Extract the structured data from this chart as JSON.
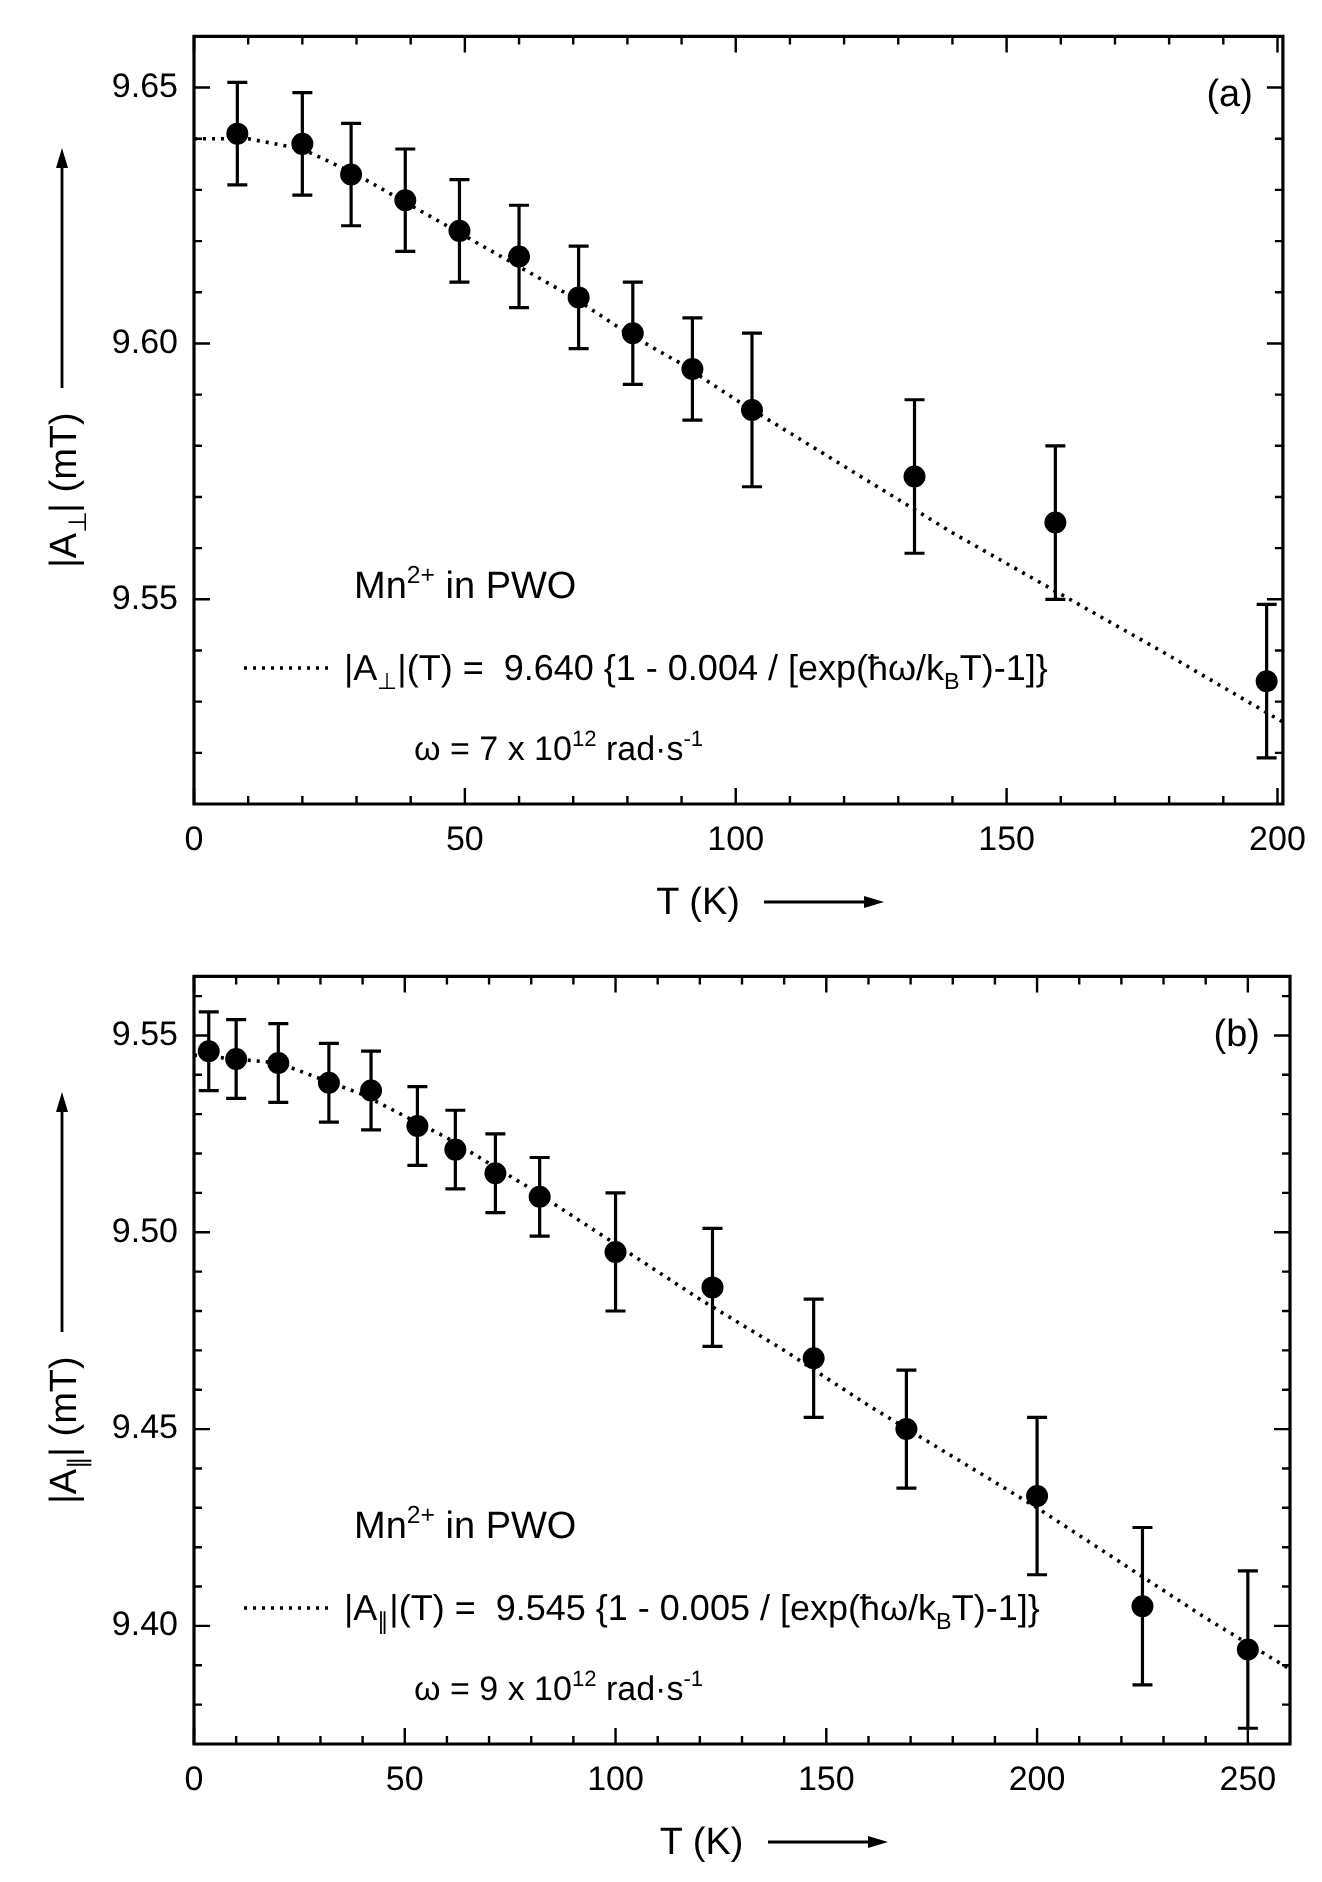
{
  "chart_data": [
    {
      "type": "scatter",
      "xlabel": "T (K)",
      "ylabel": "|A$_{⊥}$| (mT)",
      "xlim": [
        0,
        201
      ],
      "ylim": [
        9.51,
        9.66
      ],
      "xticks": [
        0,
        {
          "value": 10,
          "label": null
        },
        {
          "value": 20,
          "label": null
        },
        {
          "value": 30,
          "label": null
        },
        {
          "value": 40,
          "label": null
        },
        50,
        {
          "value": 60,
          "label": null
        },
        {
          "value": 70,
          "label": null
        },
        {
          "value": 80,
          "label": null
        },
        {
          "value": 90,
          "label": null
        },
        100,
        {
          "value": 110,
          "label": null
        },
        {
          "value": 120,
          "label": null
        },
        {
          "value": 130,
          "label": null
        },
        {
          "value": 140,
          "label": null
        },
        150,
        {
          "value": 160,
          "label": null
        },
        {
          "value": 170,
          "label": null
        },
        {
          "value": 180,
          "label": null
        },
        {
          "value": 190,
          "label": null
        },
        200
      ],
      "yticks": [
        {
          "value": 9.52,
          "label": null
        },
        {
          "value": 9.53,
          "label": null
        },
        {
          "value": 9.54,
          "label": null
        },
        {
          "value": 9.55,
          "label": "9.55"
        },
        {
          "value": 9.56,
          "label": null
        },
        {
          "value": 9.57,
          "label": null
        },
        {
          "value": 9.58,
          "label": null
        },
        {
          "value": 9.59,
          "label": null
        },
        {
          "value": 9.6,
          "label": "9.60"
        },
        {
          "value": 9.61,
          "label": null
        },
        {
          "value": 9.62,
          "label": null
        },
        {
          "value": 9.63,
          "label": null
        },
        {
          "value": 9.64,
          "label": null
        },
        {
          "value": 9.65,
          "label": "9.65"
        }
      ],
      "legend": "bottom left",
      "annotations": [
        "(a)",
        "Mn$^{2+}$ in PWO",
        "ω = 7 x 10$^{12}$ rad·s$^{-1}$"
      ],
      "series": [
        {
          "type": "scatter",
          "color": "#000000",
          "marker": "circle",
          "x": [
            8,
            20,
            29,
            39,
            49,
            60,
            71,
            81,
            92,
            103,
            133,
            159,
            198
          ],
          "values": [
            9.641,
            9.639,
            9.633,
            9.628,
            9.622,
            9.617,
            9.609,
            9.602,
            9.595,
            9.587,
            9.574,
            9.565,
            9.534
          ],
          "errors": [
            0.01,
            0.01,
            0.01,
            0.01,
            0.01,
            0.01,
            0.01,
            0.01,
            0.01,
            0.015,
            0.015,
            0.015,
            0.015
          ]
        },
        {
          "type": "line",
          "name": "|A$_{⊥}$|(T) =  9.640 {1 - 0.004 / [exp(ħω/k$_{B}$T)-1]}",
          "color": "#000000",
          "marker": "none",
          "line_style": "dotted",
          "x": [
            0,
            10,
            20,
            30,
            40,
            50,
            60,
            70,
            80,
            90,
            100,
            120,
            140,
            160,
            180,
            201
          ],
          "values": [
            9.64,
            9.64,
            9.638,
            9.633,
            9.627,
            9.621,
            9.615,
            9.609,
            9.602,
            9.596,
            9.589,
            9.576,
            9.563,
            9.551,
            9.539,
            9.526
          ]
        }
      ]
    },
    {
      "type": "scatter",
      "xlabel": "T (K)",
      "ylabel": "|A$_{∥}$| (mT)",
      "xlim": [
        0,
        260
      ],
      "ylim": [
        9.37,
        9.565
      ],
      "xticks": [
        0,
        {
          "value": 10,
          "label": null
        },
        {
          "value": 20,
          "label": null
        },
        {
          "value": 30,
          "label": null
        },
        {
          "value": 40,
          "label": null
        },
        50,
        {
          "value": 60,
          "label": null
        },
        {
          "value": 70,
          "label": null
        },
        {
          "value": 80,
          "label": null
        },
        {
          "value": 90,
          "label": null
        },
        100,
        {
          "value": 110,
          "label": null
        },
        {
          "value": 120,
          "label": null
        },
        {
          "value": 130,
          "label": null
        },
        {
          "value": 140,
          "label": null
        },
        150,
        {
          "value": 160,
          "label": null
        },
        {
          "value": 170,
          "label": null
        },
        {
          "value": 180,
          "label": null
        },
        {
          "value": 190,
          "label": null
        },
        200,
        {
          "value": 210,
          "label": null
        },
        {
          "value": 220,
          "label": null
        },
        {
          "value": 230,
          "label": null
        },
        {
          "value": 240,
          "label": null
        },
        250
      ],
      "yticks": [
        {
          "value": 9.38,
          "label": null
        },
        {
          "value": 9.39,
          "label": null
        },
        {
          "value": 9.4,
          "label": "9.40"
        },
        {
          "value": 9.41,
          "label": null
        },
        {
          "value": 9.42,
          "label": null
        },
        {
          "value": 9.43,
          "label": null
        },
        {
          "value": 9.44,
          "label": null
        },
        {
          "value": 9.45,
          "label": "9.45"
        },
        {
          "value": 9.46,
          "label": null
        },
        {
          "value": 9.47,
          "label": null
        },
        {
          "value": 9.48,
          "label": null
        },
        {
          "value": 9.49,
          "label": null
        },
        {
          "value": 9.5,
          "label": "9.50"
        },
        {
          "value": 9.51,
          "label": null
        },
        {
          "value": 9.52,
          "label": null
        },
        {
          "value": 9.53,
          "label": null
        },
        {
          "value": 9.54,
          "label": null
        },
        {
          "value": 9.55,
          "label": "9.55"
        },
        {
          "value": 9.56,
          "label": null
        }
      ],
      "legend": "bottom left",
      "annotations": [
        "(b)",
        "Mn$^{2+}$ in PWO",
        "ω = 9 x 10$^{12}$ rad·s$^{-1}$"
      ],
      "series": [
        {
          "type": "scatter",
          "color": "#000000",
          "marker": "circle",
          "x": [
            3.5,
            10,
            20,
            32,
            42,
            53,
            62,
            71.5,
            82,
            100,
            123,
            147,
            169,
            200,
            225,
            250
          ],
          "values": [
            9.546,
            9.544,
            9.543,
            9.538,
            9.536,
            9.527,
            9.521,
            9.515,
            9.509,
            9.495,
            9.486,
            9.468,
            9.45,
            9.433,
            9.405,
            9.394
          ],
          "errors": [
            0.01,
            0.01,
            0.01,
            0.01,
            0.01,
            0.01,
            0.01,
            0.01,
            0.01,
            0.015,
            0.015,
            0.015,
            0.015,
            0.02,
            0.02,
            0.02
          ]
        },
        {
          "type": "line",
          "name": "|A$_{∥}$|(T) =  9.545 {1 - 0.005 / [exp(ħω/k$_{B}$T)-1]}",
          "color": "#000000",
          "marker": "none",
          "line_style": "dotted",
          "x": [
            0,
            20,
            40,
            60,
            80,
            100,
            120,
            140,
            160,
            180,
            200,
            220,
            240,
            260
          ],
          "values": [
            9.545,
            9.543,
            9.535,
            9.524,
            9.511,
            9.497,
            9.483,
            9.47,
            9.456,
            9.443,
            9.43,
            9.416,
            9.402,
            9.389
          ]
        }
      ]
    }
  ]
}
